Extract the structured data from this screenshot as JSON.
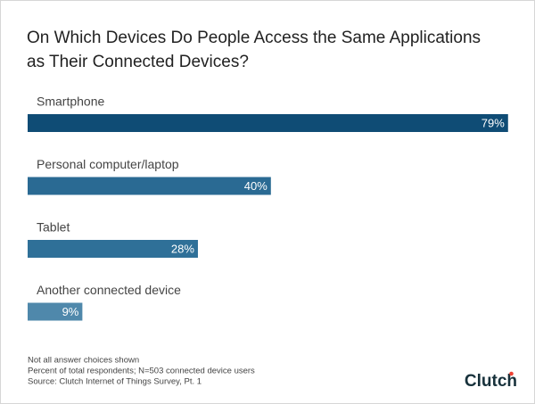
{
  "chart_data": {
    "type": "bar",
    "orientation": "horizontal",
    "title": "On Which Devices Do People Access the Same Applications as Their Connected Devices?",
    "categories": [
      "Smartphone",
      "Personal computer/laptop",
      "Tablet",
      "Another connected device"
    ],
    "values": [
      79,
      40,
      28,
      9
    ],
    "value_labels": [
      "79%",
      "40%",
      "28%",
      "9%"
    ],
    "colors": [
      "#0f4c75",
      "#2a6a93",
      "#2f7098",
      "#4f88ab"
    ],
    "notes": [
      "Not all answer choices shown",
      "Percent of total respondents; N=503 connected device users",
      "Source: Clutch Internet of Things Survey, Pt. 1"
    ],
    "brand": "Clutch"
  }
}
